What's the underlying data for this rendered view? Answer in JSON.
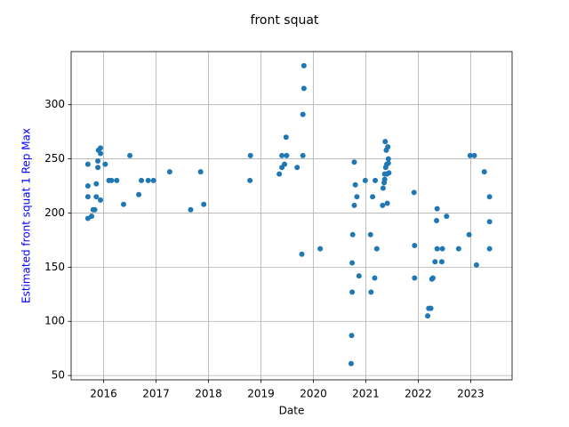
{
  "chart_data": {
    "type": "scatter",
    "title": "front squat",
    "xlabel": "Date",
    "ylabel": "Estimated front squat 1 Rep Max",
    "ylabel_color": "#0000ff",
    "marker_color": "#1f77b4",
    "grid": true,
    "xlim": [
      2015.38,
      2023.79
    ],
    "ylim": [
      46,
      349
    ],
    "xticks": [
      2016,
      2017,
      2018,
      2019,
      2020,
      2021,
      2022,
      2023
    ],
    "yticks": [
      50,
      100,
      150,
      200,
      250,
      300
    ],
    "x_tick_labels": [
      "2016",
      "2017",
      "2018",
      "2019",
      "2020",
      "2021",
      "2022",
      "2023"
    ],
    "y_tick_labels": [
      "50",
      "100",
      "150",
      "200",
      "250",
      "300"
    ],
    "points": [
      {
        "x": 2015.7,
        "y": 245
      },
      {
        "x": 2015.7,
        "y": 225
      },
      {
        "x": 2015.7,
        "y": 215
      },
      {
        "x": 2015.7,
        "y": 195
      },
      {
        "x": 2015.77,
        "y": 197
      },
      {
        "x": 2015.8,
        "y": 203
      },
      {
        "x": 2015.83,
        "y": 203
      },
      {
        "x": 2015.86,
        "y": 215
      },
      {
        "x": 2015.86,
        "y": 227
      },
      {
        "x": 2015.89,
        "y": 242
      },
      {
        "x": 2015.89,
        "y": 248
      },
      {
        "x": 2015.9,
        "y": 258
      },
      {
        "x": 2015.94,
        "y": 260
      },
      {
        "x": 2015.94,
        "y": 255
      },
      {
        "x": 2015.94,
        "y": 212
      },
      {
        "x": 2016.03,
        "y": 245
      },
      {
        "x": 2016.1,
        "y": 230
      },
      {
        "x": 2016.15,
        "y": 230
      },
      {
        "x": 2016.25,
        "y": 230
      },
      {
        "x": 2016.38,
        "y": 208
      },
      {
        "x": 2016.5,
        "y": 253
      },
      {
        "x": 2016.67,
        "y": 217
      },
      {
        "x": 2016.72,
        "y": 230
      },
      {
        "x": 2016.85,
        "y": 230
      },
      {
        "x": 2016.95,
        "y": 230
      },
      {
        "x": 2017.26,
        "y": 238
      },
      {
        "x": 2017.66,
        "y": 203
      },
      {
        "x": 2017.85,
        "y": 238
      },
      {
        "x": 2017.91,
        "y": 208
      },
      {
        "x": 2018.79,
        "y": 230
      },
      {
        "x": 2018.8,
        "y": 253
      },
      {
        "x": 2019.35,
        "y": 236
      },
      {
        "x": 2019.4,
        "y": 242
      },
      {
        "x": 2019.4,
        "y": 253
      },
      {
        "x": 2019.45,
        "y": 245
      },
      {
        "x": 2019.48,
        "y": 270
      },
      {
        "x": 2019.49,
        "y": 253
      },
      {
        "x": 2019.69,
        "y": 242
      },
      {
        "x": 2019.78,
        "y": 162
      },
      {
        "x": 2019.8,
        "y": 253
      },
      {
        "x": 2019.8,
        "y": 291
      },
      {
        "x": 2019.82,
        "y": 315
      },
      {
        "x": 2019.82,
        "y": 336
      },
      {
        "x": 2020.13,
        "y": 167
      },
      {
        "x": 2020.72,
        "y": 61
      },
      {
        "x": 2020.73,
        "y": 87
      },
      {
        "x": 2020.74,
        "y": 127
      },
      {
        "x": 2020.74,
        "y": 154
      },
      {
        "x": 2020.75,
        "y": 180
      },
      {
        "x": 2020.78,
        "y": 207
      },
      {
        "x": 2020.78,
        "y": 247
      },
      {
        "x": 2020.8,
        "y": 226
      },
      {
        "x": 2020.83,
        "y": 215
      },
      {
        "x": 2020.87,
        "y": 142
      },
      {
        "x": 2020.99,
        "y": 230
      },
      {
        "x": 2021.09,
        "y": 180
      },
      {
        "x": 2021.1,
        "y": 127
      },
      {
        "x": 2021.13,
        "y": 215
      },
      {
        "x": 2021.17,
        "y": 140
      },
      {
        "x": 2021.18,
        "y": 230
      },
      {
        "x": 2021.21,
        "y": 167
      },
      {
        "x": 2021.32,
        "y": 207
      },
      {
        "x": 2021.33,
        "y": 223
      },
      {
        "x": 2021.35,
        "y": 228
      },
      {
        "x": 2021.36,
        "y": 236
      },
      {
        "x": 2021.36,
        "y": 231
      },
      {
        "x": 2021.37,
        "y": 266
      },
      {
        "x": 2021.38,
        "y": 242
      },
      {
        "x": 2021.39,
        "y": 258
      },
      {
        "x": 2021.4,
        "y": 245
      },
      {
        "x": 2021.4,
        "y": 236
      },
      {
        "x": 2021.41,
        "y": 209
      },
      {
        "x": 2021.42,
        "y": 261
      },
      {
        "x": 2021.43,
        "y": 250
      },
      {
        "x": 2021.43,
        "y": 246
      },
      {
        "x": 2021.44,
        "y": 237
      },
      {
        "x": 2021.92,
        "y": 219
      },
      {
        "x": 2021.93,
        "y": 170
      },
      {
        "x": 2021.93,
        "y": 140
      },
      {
        "x": 2022.18,
        "y": 105
      },
      {
        "x": 2022.2,
        "y": 112
      },
      {
        "x": 2022.24,
        "y": 112
      },
      {
        "x": 2022.26,
        "y": 139
      },
      {
        "x": 2022.28,
        "y": 140
      },
      {
        "x": 2022.32,
        "y": 155
      },
      {
        "x": 2022.35,
        "y": 193
      },
      {
        "x": 2022.36,
        "y": 204
      },
      {
        "x": 2022.36,
        "y": 167
      },
      {
        "x": 2022.45,
        "y": 155
      },
      {
        "x": 2022.46,
        "y": 167
      },
      {
        "x": 2022.54,
        "y": 197
      },
      {
        "x": 2022.77,
        "y": 167
      },
      {
        "x": 2022.97,
        "y": 180
      },
      {
        "x": 2022.99,
        "y": 253
      },
      {
        "x": 2023.07,
        "y": 253
      },
      {
        "x": 2023.11,
        "y": 152
      },
      {
        "x": 2023.26,
        "y": 238
      },
      {
        "x": 2023.36,
        "y": 215
      },
      {
        "x": 2023.36,
        "y": 192
      },
      {
        "x": 2023.36,
        "y": 167
      }
    ]
  }
}
